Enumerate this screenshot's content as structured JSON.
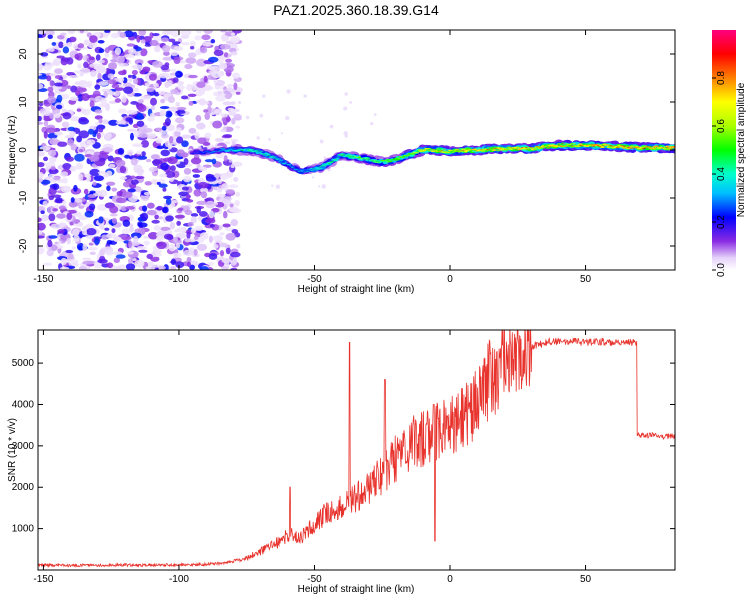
{
  "chart_data": [
    {
      "type": "heatmap",
      "title": "PAZ1.2025.360.18.39.G14",
      "xlabel": "Height of straight line (km)",
      "ylabel": "Frequency (Hz)",
      "xlim": [
        -152,
        83
      ],
      "ylim": [
        -25,
        25
      ],
      "xticks": [
        -150,
        -100,
        -50,
        0,
        50
      ],
      "xtick_labels": [
        "-150",
        "-100",
        "-50",
        "0",
        "50"
      ],
      "yticks": [
        -20,
        -10,
        0,
        10,
        20
      ],
      "ytick_labels": [
        "-20",
        "-10",
        "0",
        "10",
        "20"
      ],
      "colorbar": {
        "label": "Normalized spectral amplitude",
        "range": [
          0,
          1
        ],
        "ticks": [
          0,
          0.2,
          0.4,
          0.6,
          0.8
        ],
        "tick_labels": [
          "0.0",
          "0.2",
          "0.4",
          "0.6",
          "0.8"
        ]
      },
      "noise_region_km": [
        -152,
        -80
      ],
      "ridge": {
        "x": [
          -95,
          -90,
          -85,
          -80,
          -75,
          -70,
          -65,
          -60,
          -55,
          -50,
          -47,
          -44,
          -40,
          -35,
          -30,
          -25,
          -20,
          -15,
          -10,
          -5,
          0,
          10,
          20,
          30,
          40,
          50,
          60,
          70,
          83
        ],
        "freq": [
          -0.5,
          -0.5,
          0,
          0,
          0,
          -0.5,
          -1.5,
          -3,
          -4.5,
          -4,
          -3.5,
          -2.5,
          -1,
          -1.5,
          -2,
          -2.5,
          -2,
          -1,
          0,
          0,
          -0.3,
          0,
          0.3,
          0.3,
          1,
          1,
          0.8,
          0.5,
          0.5
        ],
        "amplitude": [
          0.25,
          0.3,
          0.35,
          0.45,
          0.5,
          0.5,
          0.45,
          0.4,
          0.4,
          0.45,
          0.5,
          0.5,
          0.55,
          0.6,
          0.6,
          0.6,
          0.65,
          0.7,
          0.75,
          0.8,
          0.8,
          0.85,
          0.85,
          0.85,
          0.85,
          0.9,
          0.9,
          0.9,
          0.9
        ]
      }
    },
    {
      "type": "line",
      "title": "",
      "xlabel": "Height of straight line (km)",
      "ylabel": "SNR (10 * v/v)",
      "xlim": [
        -152,
        83
      ],
      "ylim": [
        0,
        5800
      ],
      "xticks": [
        -150,
        -100,
        -50,
        0,
        50
      ],
      "xtick_labels": [
        "-150",
        "-100",
        "-50",
        "0",
        "50"
      ],
      "yticks": [
        1000,
        2000,
        3000,
        4000,
        5000
      ],
      "ytick_labels": [
        "1000",
        "2000",
        "3000",
        "4000",
        "5000"
      ],
      "color": "#e8322c",
      "series": [
        {
          "name": "SNR",
          "x": [
            -152,
            -140,
            -130,
            -120,
            -110,
            -100,
            -95,
            -90,
            -85,
            -80,
            -75,
            -70,
            -65,
            -60,
            -55,
            -50,
            -45,
            -40,
            -35,
            -30,
            -25,
            -20,
            -15,
            -10,
            -5,
            0,
            5,
            10,
            15,
            20,
            25,
            30,
            35,
            40,
            45,
            50,
            55,
            60,
            65,
            69,
            70,
            75,
            80,
            83
          ],
          "y": [
            120,
            110,
            115,
            120,
            120,
            125,
            130,
            140,
            160,
            210,
            300,
            450,
            600,
            850,
            800,
            1100,
            1400,
            1500,
            1700,
            2000,
            2300,
            2700,
            3000,
            3200,
            3350,
            3450,
            3700,
            4100,
            4600,
            4950,
            5200,
            5400,
            5500,
            5520,
            5530,
            5500,
            5520,
            5500,
            5490,
            5500,
            3250,
            3250,
            3230,
            3250
          ],
          "spikes": [
            {
              "x": -59,
              "y": 2000
            },
            {
              "x": -37,
              "y": 5500
            },
            {
              "x": -24,
              "y": 4600
            },
            {
              "x": -6,
              "y": 4000
            },
            {
              "x": -5.5,
              "y": 700
            }
          ]
        }
      ]
    }
  ]
}
